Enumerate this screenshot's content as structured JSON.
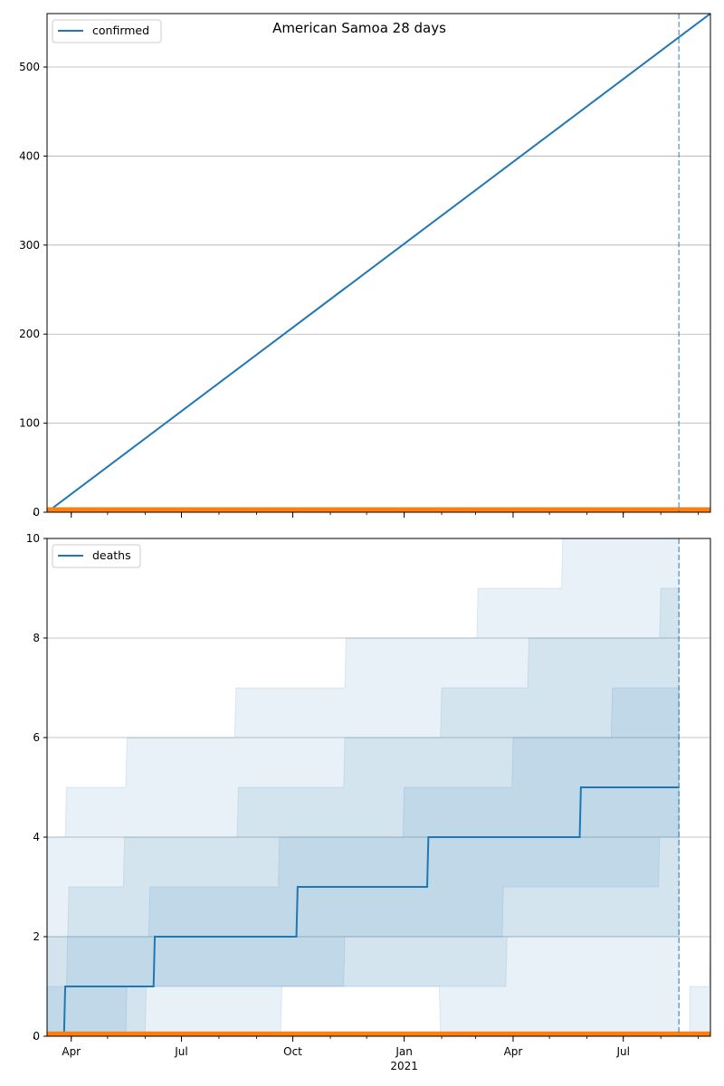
{
  "chart_data": [
    {
      "type": "line",
      "title": "American Samoa 28 days",
      "xlabel": "",
      "ylabel": "",
      "ylim": [
        0,
        560
      ],
      "yticks": [
        0,
        100,
        200,
        300,
        400,
        500
      ],
      "grid": true,
      "legend": "top-left",
      "series": [
        {
          "name": "confirmed",
          "color": "#1f77b4",
          "points": [
            [
              "2020-03-12",
              0
            ],
            [
              "2021-09-11",
              560
            ]
          ]
        },
        {
          "color": "#ff7f0e",
          "points": [
            [
              "2020-03-12",
              3
            ],
            [
              "2021-09-11",
              3
            ]
          ]
        }
      ],
      "vline": {
        "x": "2021-08-16",
        "color": "#1f77b4",
        "style": "dashed"
      }
    },
    {
      "type": "area",
      "xlabel": "",
      "ylabel": "",
      "ylim": [
        0,
        10
      ],
      "yticks": [
        0,
        2,
        4,
        6,
        8,
        10
      ],
      "grid": true,
      "legend": "top-left",
      "series": [
        {
          "name": "deaths",
          "color": "#1f77b4",
          "points": [
            [
              "2020-03-12",
              0
            ],
            [
              "2020-03-26",
              0
            ],
            [
              "2020-03-27",
              1
            ],
            [
              "2020-06-08",
              1
            ],
            [
              "2020-06-09",
              2
            ],
            [
              "2020-10-04",
              2
            ],
            [
              "2020-10-05",
              3
            ],
            [
              "2021-01-20",
              3
            ],
            [
              "2021-01-21",
              4
            ],
            [
              "2021-05-26",
              4
            ],
            [
              "2021-05-27",
              5
            ],
            [
              "2021-08-16",
              5
            ]
          ]
        },
        {
          "color": "#ff7f0e",
          "points": [
            [
              "2020-03-12",
              0.05
            ],
            [
              "2021-09-11",
              0.05
            ]
          ]
        }
      ],
      "bands": [
        {
          "opacity": 0.1,
          "lower": [
            [
              "2020-03-12",
              0
            ],
            [
              "2020-06-01",
              0
            ],
            [
              "2020-06-02",
              1
            ],
            [
              "2020-09-21",
              1
            ],
            [
              "2020-09-22",
              1
            ],
            [
              "2021-01-30",
              1
            ],
            [
              "2021-01-31",
              0
            ],
            [
              "2021-08-16",
              0
            ]
          ],
          "upper": [
            [
              "2020-03-12",
              4
            ],
            [
              "2020-03-27",
              4
            ],
            [
              "2020-03-28",
              5
            ],
            [
              "2020-05-16",
              5
            ],
            [
              "2020-05-17",
              6
            ],
            [
              "2020-08-14",
              6
            ],
            [
              "2020-08-15",
              7
            ],
            [
              "2020-11-13",
              7
            ],
            [
              "2020-11-14",
              8
            ],
            [
              "2021-03-02",
              8
            ],
            [
              "2021-03-03",
              9
            ],
            [
              "2021-05-11",
              9
            ],
            [
              "2021-05-12",
              10
            ],
            [
              "2021-08-16",
              10
            ]
          ]
        },
        {
          "opacity": 0.1,
          "lower": [
            [
              "2020-03-12",
              0
            ],
            [
              "2020-09-21",
              0
            ],
            [
              "2020-09-22",
              1
            ],
            [
              "2021-03-26",
              1
            ],
            [
              "2021-03-27",
              2
            ],
            [
              "2021-08-16",
              2
            ]
          ],
          "upper": [
            [
              "2020-03-12",
              2
            ],
            [
              "2020-03-29",
              2
            ],
            [
              "2020-03-30",
              3
            ],
            [
              "2020-05-14",
              3
            ],
            [
              "2020-05-15",
              4
            ],
            [
              "2020-08-16",
              4
            ],
            [
              "2020-08-17",
              5
            ],
            [
              "2020-11-12",
              5
            ],
            [
              "2020-11-13",
              6
            ],
            [
              "2021-01-31",
              6
            ],
            [
              "2021-02-01",
              7
            ],
            [
              "2021-04-13",
              7
            ],
            [
              "2021-04-14",
              8
            ],
            [
              "2021-07-31",
              8
            ],
            [
              "2021-08-01",
              9
            ],
            [
              "2021-08-16",
              9
            ]
          ]
        },
        {
          "opacity": 0.1,
          "lower": [
            [
              "2020-03-12",
              0
            ],
            [
              "2020-05-16",
              0
            ],
            [
              "2020-05-17",
              1
            ],
            [
              "2020-11-12",
              1
            ],
            [
              "2020-11-13",
              2
            ],
            [
              "2021-03-23",
              2
            ],
            [
              "2021-03-24",
              3
            ],
            [
              "2021-07-30",
              3
            ],
            [
              "2021-07-31",
              4
            ],
            [
              "2021-08-16",
              4
            ]
          ],
          "upper": [
            [
              "2020-03-12",
              1
            ],
            [
              "2020-03-28",
              1
            ],
            [
              "2020-03-29",
              2
            ],
            [
              "2020-06-04",
              2
            ],
            [
              "2020-06-05",
              3
            ],
            [
              "2020-09-19",
              3
            ],
            [
              "2020-09-20",
              4
            ],
            [
              "2020-12-31",
              4
            ],
            [
              "2021-01-01",
              5
            ],
            [
              "2021-03-31",
              5
            ],
            [
              "2021-04-01",
              6
            ],
            [
              "2021-06-21",
              6
            ],
            [
              "2021-06-22",
              7
            ],
            [
              "2021-08-16",
              7
            ]
          ]
        },
        {
          "opacity": 0.1,
          "lower": [
            [
              "2021-08-25",
              0
            ],
            [
              "2021-09-11",
              0
            ]
          ],
          "upper": [
            [
              "2021-08-25",
              1
            ],
            [
              "2021-09-10",
              1
            ],
            [
              "2021-09-11",
              2
            ]
          ]
        }
      ],
      "vline": {
        "x": "2021-08-16",
        "color": "#1f77b4",
        "style": "dashed"
      },
      "xticks": [
        {
          "date": "2020-04-01",
          "label": "Apr"
        },
        {
          "date": "2020-07-01",
          "label": "Jul"
        },
        {
          "date": "2020-10-01",
          "label": "Oct"
        },
        {
          "date": "2021-01-01",
          "label": "Jan",
          "sublabel": "2021"
        },
        {
          "date": "2021-04-01",
          "label": "Apr"
        },
        {
          "date": "2021-07-01",
          "label": "Jul"
        }
      ]
    }
  ]
}
